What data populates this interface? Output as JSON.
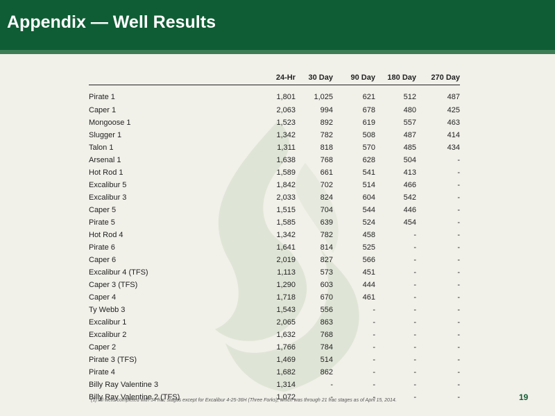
{
  "header": {
    "title": "Appendix — Well Results"
  },
  "table": {
    "columns": [
      "",
      "24-Hr",
      "30 Day",
      "90 Day",
      "180 Day",
      "270 Day"
    ],
    "rows": [
      [
        "Pirate 1",
        "1,801",
        "1,025",
        "621",
        "512",
        "487"
      ],
      [
        "Caper 1",
        "2,063",
        "994",
        "678",
        "480",
        "425"
      ],
      [
        "Mongoose 1",
        "1,523",
        "892",
        "619",
        "557",
        "463"
      ],
      [
        "Slugger 1",
        "1,342",
        "782",
        "508",
        "487",
        "414"
      ],
      [
        "Talon 1",
        "1,311",
        "818",
        "570",
        "485",
        "434"
      ],
      [
        "Arsenal 1",
        "1,638",
        "768",
        "628",
        "504",
        "-"
      ],
      [
        "Hot Rod 1",
        "1,589",
        "661",
        "541",
        "413",
        "-"
      ],
      [
        "Excalibur 5",
        "1,842",
        "702",
        "514",
        "466",
        "-"
      ],
      [
        "Excalibur 3",
        "2,033",
        "824",
        "604",
        "542",
        "-"
      ],
      [
        "Caper 5",
        "1,515",
        "704",
        "544",
        "446",
        "-"
      ],
      [
        "Pirate 5",
        "1,585",
        "639",
        "524",
        "454",
        "-"
      ],
      [
        "Hot Rod 4",
        "1,342",
        "782",
        "458",
        "-",
        "-"
      ],
      [
        "Pirate 6",
        "1,641",
        "814",
        "525",
        "-",
        "-"
      ],
      [
        "Caper 6",
        "2,019",
        "827",
        "566",
        "-",
        "-"
      ],
      [
        "Excalibur 4 (TFS)",
        "1,113",
        "573",
        "451",
        "-",
        "-"
      ],
      [
        "Caper 3 (TFS)",
        "1,290",
        "603",
        "444",
        "-",
        "-"
      ],
      [
        "Caper 4",
        "1,718",
        "670",
        "461",
        "-",
        "-"
      ],
      [
        "Ty Webb 3",
        "1,543",
        "556",
        "-",
        "-",
        "-"
      ],
      [
        "Excalibur 1",
        "2,065",
        "863",
        "-",
        "-",
        "-"
      ],
      [
        "Excalibur 2",
        "1,632",
        "768",
        "-",
        "-",
        "-"
      ],
      [
        "Caper 2",
        "1,766",
        "784",
        "-",
        "-",
        "-"
      ],
      [
        "Pirate 3 (TFS)",
        "1,469",
        "514",
        "-",
        "-",
        "-"
      ],
      [
        "Pirate 4",
        "1,682",
        "862",
        "-",
        "-",
        "-"
      ],
      [
        "Billy Ray Valentine 3",
        "1,314",
        "-",
        "-",
        "-",
        "-"
      ],
      [
        "Billy Ray Valentine 2 (TFS)",
        "1,072",
        "-",
        "-",
        "-",
        "-"
      ]
    ]
  },
  "footnote": "(1) All wells completed with 34 frac stages except for Excalibur 4-25-36H (Three Forks), which was through 21 frac stages as of April 15, 2014.",
  "page_number": "19",
  "colors": {
    "header": "#0f5d34",
    "background": "#f1f0e9",
    "watermark": "#dfe5d6"
  },
  "watermark_icon": "flame-logo-icon"
}
